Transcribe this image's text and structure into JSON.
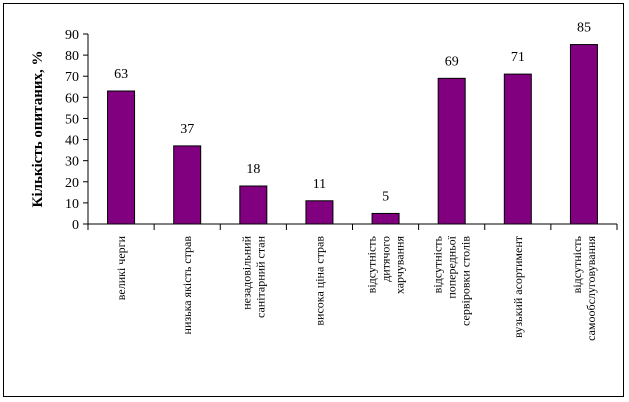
{
  "chart_data": {
    "type": "bar",
    "ylabel": "Кількість опитаних, %",
    "ylim": [
      0,
      90
    ],
    "ytick_step": 10,
    "grid": false,
    "legend": "none",
    "bar_color": "#800080",
    "bar_edge_color": "#000000",
    "categories": [
      [
        "великі черги"
      ],
      [
        "низька якість страв"
      ],
      [
        "незадовільний",
        "санітарний стан"
      ],
      [
        "висока ціна страв"
      ],
      [
        "відсутність",
        "дитячого",
        "харчування"
      ],
      [
        "відсутність",
        "попередньої",
        "сервіровки столів"
      ],
      [
        "вузький асортимент"
      ],
      [
        "відсутність",
        "самообслуговування"
      ]
    ],
    "values": [
      63,
      37,
      18,
      11,
      5,
      69,
      71,
      85
    ]
  }
}
